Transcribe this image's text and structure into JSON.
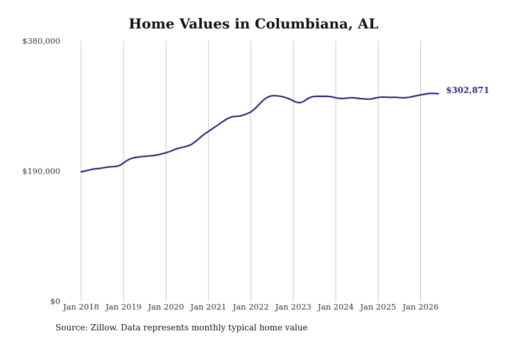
{
  "chart_data": {
    "type": "line",
    "title": "Home Values in Columbiana, AL",
    "xlabel": "",
    "ylabel": "",
    "ylim": [
      0,
      380000
    ],
    "xlim": [
      "2018-01",
      "2026-06"
    ],
    "y_ticks": [
      {
        "value": 0,
        "label": "$0"
      },
      {
        "value": 190000,
        "label": "$190,000"
      },
      {
        "value": 380000,
        "label": "$380,000"
      }
    ],
    "x_ticks": [
      {
        "value": "2018-01",
        "label": "Jan 2018"
      },
      {
        "value": "2019-01",
        "label": "Jan 2019"
      },
      {
        "value": "2020-01",
        "label": "Jan 2020"
      },
      {
        "value": "2021-01",
        "label": "Jan 2021"
      },
      {
        "value": "2022-01",
        "label": "Jan 2022"
      },
      {
        "value": "2023-01",
        "label": "Jan 2023"
      },
      {
        "value": "2024-01",
        "label": "Jan 2024"
      },
      {
        "value": "2025-01",
        "label": "Jan 2025"
      },
      {
        "value": "2026-01",
        "label": "Jan 2026"
      }
    ],
    "grid": {
      "vertical": true,
      "horizontal": false
    },
    "line_color": "#2e2a7a",
    "grid_color": "#c8c8c8",
    "end_label": "$302,871",
    "series": [
      {
        "points": [
          [
            "2018-01",
            189000
          ],
          [
            "2018-02",
            190000
          ],
          [
            "2018-03",
            191200
          ],
          [
            "2018-04",
            192500
          ],
          [
            "2018-05",
            193300
          ],
          [
            "2018-06",
            193800
          ],
          [
            "2018-07",
            194500
          ],
          [
            "2018-08",
            195500
          ],
          [
            "2018-09",
            196000
          ],
          [
            "2018-10",
            196500
          ],
          [
            "2018-11",
            197000
          ],
          [
            "2018-12",
            198500
          ],
          [
            "2019-01",
            202000
          ],
          [
            "2019-02",
            205500
          ],
          [
            "2019-03",
            208000
          ],
          [
            "2019-04",
            209500
          ],
          [
            "2019-05",
            210300
          ],
          [
            "2019-06",
            211000
          ],
          [
            "2019-07",
            211500
          ],
          [
            "2019-08",
            212000
          ],
          [
            "2019-09",
            212500
          ],
          [
            "2019-10",
            213200
          ],
          [
            "2019-11",
            214000
          ],
          [
            "2019-12",
            215500
          ],
          [
            "2020-01",
            216800
          ],
          [
            "2020-02",
            218500
          ],
          [
            "2020-03",
            220500
          ],
          [
            "2020-04",
            222500
          ],
          [
            "2020-05",
            224000
          ],
          [
            "2020-06",
            225000
          ],
          [
            "2020-07",
            226500
          ],
          [
            "2020-08",
            228500
          ],
          [
            "2020-09",
            232000
          ],
          [
            "2020-10",
            236000
          ],
          [
            "2020-11",
            240500
          ],
          [
            "2020-12",
            244500
          ],
          [
            "2021-01",
            248000
          ],
          [
            "2021-02",
            251500
          ],
          [
            "2021-03",
            255000
          ],
          [
            "2021-04",
            258500
          ],
          [
            "2021-05",
            262000
          ],
          [
            "2021-06",
            265500
          ],
          [
            "2021-07",
            268000
          ],
          [
            "2021-08",
            269500
          ],
          [
            "2021-09",
            270000
          ],
          [
            "2021-10",
            270500
          ],
          [
            "2021-11",
            272000
          ],
          [
            "2021-12",
            274000
          ],
          [
            "2022-01",
            276500
          ],
          [
            "2022-02",
            280500
          ],
          [
            "2022-03",
            285500
          ],
          [
            "2022-04",
            291000
          ],
          [
            "2022-05",
            295500
          ],
          [
            "2022-06",
            298500
          ],
          [
            "2022-07",
            300000
          ],
          [
            "2022-08",
            300000
          ],
          [
            "2022-09",
            299500
          ],
          [
            "2022-10",
            298500
          ],
          [
            "2022-11",
            297000
          ],
          [
            "2022-12",
            295000
          ],
          [
            "2023-01",
            292500
          ],
          [
            "2023-02",
            290500
          ],
          [
            "2023-03",
            290000
          ],
          [
            "2023-04",
            292000
          ],
          [
            "2023-05",
            295500
          ],
          [
            "2023-06",
            298000
          ],
          [
            "2023-07",
            299000
          ],
          [
            "2023-08",
            299200
          ],
          [
            "2023-09",
            299200
          ],
          [
            "2023-10",
            299200
          ],
          [
            "2023-11",
            299000
          ],
          [
            "2023-12",
            298200
          ],
          [
            "2024-01",
            297000
          ],
          [
            "2024-02",
            296200
          ],
          [
            "2024-03",
            296000
          ],
          [
            "2024-04",
            296500
          ],
          [
            "2024-05",
            297000
          ],
          [
            "2024-06",
            297000
          ],
          [
            "2024-07",
            296500
          ],
          [
            "2024-08",
            295800
          ],
          [
            "2024-09",
            295300
          ],
          [
            "2024-10",
            295000
          ],
          [
            "2024-11",
            295300
          ],
          [
            "2024-12",
            296500
          ],
          [
            "2025-01",
            297500
          ],
          [
            "2025-02",
            298000
          ],
          [
            "2025-03",
            298000
          ],
          [
            "2025-04",
            297700
          ],
          [
            "2025-05",
            297700
          ],
          [
            "2025-06",
            297700
          ],
          [
            "2025-07",
            297300
          ],
          [
            "2025-08",
            297000
          ],
          [
            "2025-09",
            297300
          ],
          [
            "2025-10",
            298000
          ],
          [
            "2025-11",
            299200
          ],
          [
            "2025-12",
            300200
          ],
          [
            "2026-01",
            301200
          ],
          [
            "2026-02",
            302200
          ],
          [
            "2026-03",
            303000
          ],
          [
            "2026-04",
            303500
          ],
          [
            "2026-05",
            303300
          ],
          [
            "2026-06",
            302871
          ]
        ]
      }
    ]
  },
  "source_note": "Source: Zillow. Data represents monthly typical home value"
}
